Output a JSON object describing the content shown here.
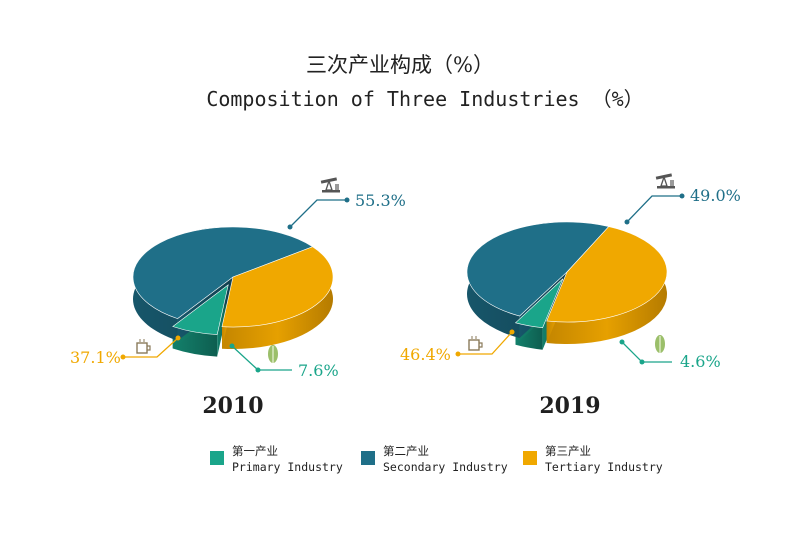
{
  "title_cn": "三次产业构成（%）",
  "title_en": "Composition of Three Industries （%）",
  "colors": {
    "primary": "#1aa58a",
    "secondary": "#1f6f88",
    "tertiary": "#f0a800"
  },
  "chart_data": [
    {
      "type": "pie",
      "title": "2010",
      "series": [
        {
          "name": "第一产业 Primary Industry",
          "value": 7.6,
          "label": "7.6%"
        },
        {
          "name": "第二产业 Secondary Industry",
          "value": 55.3,
          "label": "55.3%"
        },
        {
          "name": "第三产业 Tertiary Industry",
          "value": 37.1,
          "label": "37.1%"
        }
      ]
    },
    {
      "type": "pie",
      "title": "2019",
      "series": [
        {
          "name": "第一产业 Primary Industry",
          "value": 4.6,
          "label": "4.6%"
        },
        {
          "name": "第二产业 Secondary Industry",
          "value": 49.0,
          "label": "49.0%"
        },
        {
          "name": "第三产业 Tertiary Industry",
          "value": 46.4,
          "label": "46.4%"
        }
      ]
    }
  ],
  "legend": [
    {
      "cn": "第一产业",
      "en": "Primary Industry",
      "icon": "wheat-icon"
    },
    {
      "cn": "第二产业",
      "en": "Secondary Industry",
      "icon": "oil-pump-icon"
    },
    {
      "cn": "第三产业",
      "en": "Tertiary Industry",
      "icon": "coffee-cup-icon"
    }
  ]
}
